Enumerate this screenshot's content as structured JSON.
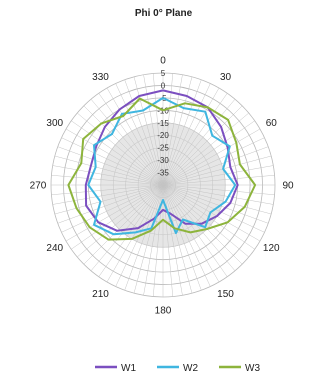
{
  "chart_data": {
    "type": "line",
    "polar": true,
    "title": "Phi 0° Plane",
    "angle_ticks": [
      "0",
      "30",
      "60",
      "90",
      "120",
      "150",
      "180",
      "210",
      "240",
      "270",
      "300",
      "330"
    ],
    "radial_ticks": [
      "5",
      "0",
      "-5",
      "-10",
      "-15",
      "-20",
      "-25",
      "-30",
      "-35"
    ],
    "rlim": [
      -40,
      5
    ],
    "grid": true,
    "legend": "bottom",
    "angles": [
      0,
      15,
      30,
      45,
      60,
      75,
      90,
      105,
      120,
      135,
      150,
      165,
      180,
      195,
      210,
      225,
      240,
      255,
      270,
      285,
      300,
      315,
      330,
      345
    ],
    "series": [
      {
        "name": "W1",
        "color": "#7b4fc0",
        "values": [
          -2,
          -3,
          -4,
          -7,
          -10,
          -12,
          -10,
          -12,
          -15,
          -18,
          -22,
          -28,
          -30,
          -26,
          -20,
          -14,
          -10,
          -8,
          -9,
          -10,
          -9,
          -7,
          -5,
          -3
        ]
      },
      {
        "name": "W2",
        "color": "#3fb6e0",
        "values": [
          -5,
          -8,
          -6,
          -12,
          -9,
          -15,
          -11,
          -14,
          -18,
          -16,
          -24,
          -20,
          -34,
          -22,
          -18,
          -12,
          -8,
          -14,
          -10,
          -12,
          -8,
          -11,
          -7,
          -9
        ]
      },
      {
        "name": "W3",
        "color": "#8db43c",
        "values": [
          -10,
          -6,
          -4,
          -3,
          -6,
          -8,
          -3,
          -6,
          -10,
          -15,
          -18,
          -22,
          -26,
          -21,
          -15,
          -9,
          -6,
          -4,
          -2,
          -6,
          -3,
          -5,
          -8,
          -4
        ]
      }
    ]
  }
}
